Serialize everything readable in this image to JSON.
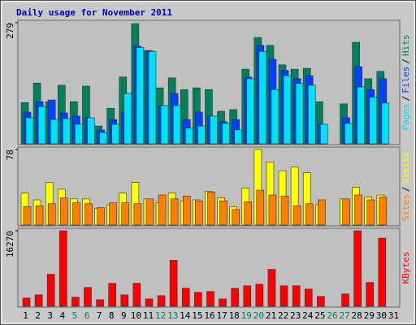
{
  "chart_data": [
    {
      "type": "bar",
      "title": "Daily usage for November 2011",
      "categories": [
        "1",
        "2",
        "3",
        "4",
        "5",
        "6",
        "7",
        "8",
        "9",
        "10",
        "11",
        "12",
        "13",
        "14",
        "15",
        "16",
        "17",
        "18",
        "19",
        "20",
        "21",
        "22",
        "23",
        "24",
        "25",
        "26",
        "27",
        "28",
        "29",
        "30",
        "31"
      ],
      "highlight_categories": [
        4,
        5,
        11,
        12,
        18,
        19,
        25,
        26
      ],
      "highlight_color": "#00805c",
      "legend_separator": "/",
      "ylim": [
        0,
        279
      ],
      "yticks": [
        279
      ],
      "series": [
        {
          "name": "Hits",
          "color": "#00805c",
          "values": [
            95,
            140,
            97,
            135,
            97,
            133,
            41,
            82,
            154,
            277,
            215,
            129,
            152,
            125,
            129,
            125,
            75,
            79,
            172,
            245,
            227,
            182,
            172,
            174,
            97,
            null,
            92,
            234,
            150,
            167,
            null
          ]
        },
        {
          "name": "Files",
          "color": "#0040ff",
          "values": [
            73,
            97,
            101,
            71,
            64,
            60,
            32,
            56,
            73,
            225,
            214,
            88,
            116,
            56,
            73,
            64,
            51,
            56,
            154,
            227,
            195,
            169,
            150,
            157,
            45,
            null,
            60,
            178,
            125,
            150,
            null
          ]
        },
        {
          "name": "Pages",
          "color": "#00e0ff",
          "values": [
            60,
            86,
            56,
            58,
            45,
            60,
            26,
            45,
            116,
            222,
            213,
            88,
            88,
            36,
            41,
            64,
            47,
            32,
            150,
            213,
            125,
            157,
            139,
            135,
            45,
            null,
            47,
            131,
            107,
            94,
            null
          ]
        }
      ]
    },
    {
      "type": "bar",
      "ylim": [
        0,
        78
      ],
      "yticks": [
        78
      ],
      "series": [
        {
          "name": "Visits",
          "color": "#ffff00",
          "values": [
            33,
            26,
            44,
            37,
            27,
            27,
            17,
            21,
            33,
            44,
            27,
            23,
            33,
            25,
            26,
            35,
            28,
            19,
            38,
            78,
            65,
            56,
            60,
            54,
            21,
            null,
            27,
            39,
            29,
            31,
            null
          ]
        },
        {
          "name": "Sites",
          "color": "#ff8000",
          "values": [
            19,
            20,
            22,
            28,
            23,
            22,
            18,
            23,
            23,
            22,
            27,
            31,
            27,
            30,
            25,
            34,
            25,
            16,
            24,
            36,
            31,
            30,
            20,
            22,
            26,
            null,
            27,
            31,
            26,
            29,
            null
          ]
        }
      ]
    },
    {
      "type": "bar",
      "ylim": [
        0,
        16270
      ],
      "yticks": [
        16270
      ],
      "series": [
        {
          "name": "KBytes",
          "color": "#ff0000",
          "values": [
            1768,
            2476,
            6897,
            16270,
            1946,
            4068,
            1415,
            4952,
            2476,
            4952,
            1592,
            2299,
            9903,
            3891,
            3007,
            3184,
            1592,
            3891,
            4421,
            4775,
            7958,
            4421,
            4421,
            3714,
            2122,
            null,
            2653,
            16270,
            5129,
            14678,
            null
          ]
        }
      ]
    }
  ]
}
